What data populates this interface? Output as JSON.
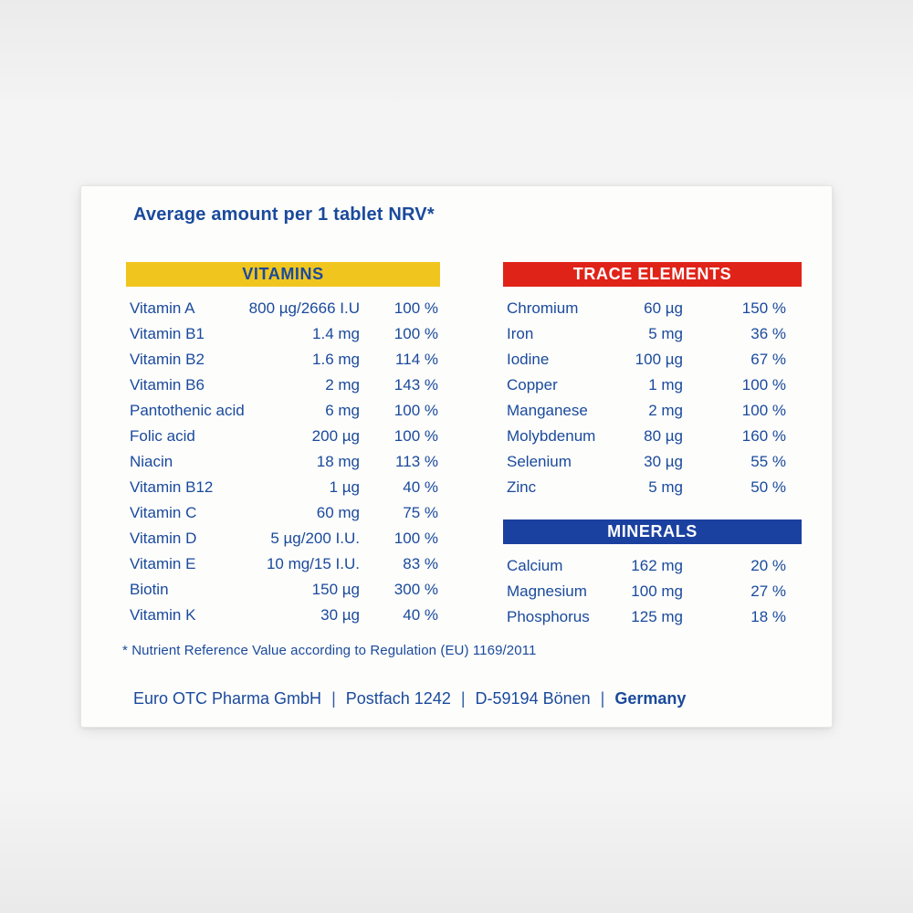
{
  "title": "Average amount per 1 tablet NRV*",
  "sections": {
    "vitamins": {
      "header": "VITAMINS",
      "rows": [
        {
          "name": "Vitamin A",
          "amount": "800 µg/2666 I.U",
          "nrv": "100 %"
        },
        {
          "name": "Vitamin B1",
          "amount": "1.4 mg",
          "nrv": "100 %"
        },
        {
          "name": "Vitamin B2",
          "amount": "1.6 mg",
          "nrv": "114 %"
        },
        {
          "name": "Vitamin B6",
          "amount": "2 mg",
          "nrv": "143 %"
        },
        {
          "name": "Pantothenic acid",
          "amount": "6 mg",
          "nrv": "100 %"
        },
        {
          "name": "Folic acid",
          "amount": "200 µg",
          "nrv": "100 %"
        },
        {
          "name": "Niacin",
          "amount": "18 mg",
          "nrv": "113 %"
        },
        {
          "name": "Vitamin B12",
          "amount": "1 µg",
          "nrv": "40 %"
        },
        {
          "name": "Vitamin C",
          "amount": "60 mg",
          "nrv": "75 %"
        },
        {
          "name": "Vitamin D",
          "amount": "5 µg/200 I.U.",
          "nrv": "100 %"
        },
        {
          "name": "Vitamin E",
          "amount": "10 mg/15 I.U.",
          "nrv": "83 %"
        },
        {
          "name": "Biotin",
          "amount": "150 µg",
          "nrv": "300 %"
        },
        {
          "name": "Vitamin K",
          "amount": "30 µg",
          "nrv": "40 %"
        }
      ]
    },
    "trace_elements": {
      "header": "TRACE ELEMENTS",
      "rows": [
        {
          "name": "Chromium",
          "amount": "60 µg",
          "nrv": "150 %"
        },
        {
          "name": "Iron",
          "amount": "5 mg",
          "nrv": "36 %"
        },
        {
          "name": "Iodine",
          "amount": "100 µg",
          "nrv": "67 %"
        },
        {
          "name": "Copper",
          "amount": "1 mg",
          "nrv": "100 %"
        },
        {
          "name": "Manganese",
          "amount": "2 mg",
          "nrv": "100 %"
        },
        {
          "name": "Molybdenum",
          "amount": "80 µg",
          "nrv": "160 %"
        },
        {
          "name": "Selenium",
          "amount": "30 µg",
          "nrv": "55 %"
        },
        {
          "name": "Zinc",
          "amount": "5 mg",
          "nrv": "50 %"
        }
      ]
    },
    "minerals": {
      "header": "MINERALS",
      "rows": [
        {
          "name": "Calcium",
          "amount": "162 mg",
          "nrv": "20 %"
        },
        {
          "name": "Magnesium",
          "amount": "100 mg",
          "nrv": "27 %"
        },
        {
          "name": "Phosphorus",
          "amount": "125 mg",
          "nrv": "18 %"
        }
      ]
    }
  },
  "footnote": "* Nutrient Reference Value according to Regulation (EU) 1169/2011",
  "footer": {
    "company": "Euro OTC Pharma GmbH",
    "postbox": "Postfach 1242",
    "city": "D-59194 Bönen",
    "country": "Germany",
    "separator": "|"
  },
  "colors": {
    "text_blue": "#1a4a9c",
    "vitamins_yellow": "#f0c51e",
    "trace_red": "#e02318",
    "minerals_blue": "#1b41a0",
    "box_white": "#fdfdfc",
    "background_gray": "#f2f2f2"
  }
}
